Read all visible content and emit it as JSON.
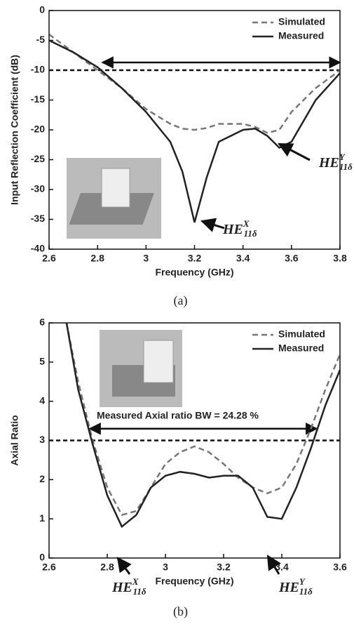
{
  "chart_data": [
    {
      "type": "line",
      "xlabel": "Frequency (GHz)",
      "ylabel": "Input Reflection Coefficient (dB)",
      "caption": "(a)",
      "x": [
        2.6,
        2.7,
        2.8,
        2.9,
        3.0,
        3.1,
        3.15,
        3.2,
        3.25,
        3.3,
        3.4,
        3.45,
        3.5,
        3.55,
        3.6,
        3.7,
        3.8
      ],
      "series": [
        {
          "name": "Simulated",
          "color": "#777777",
          "style": "dashed",
          "values": [
            -4,
            -7,
            -10,
            -13,
            -16.5,
            -19,
            -19.8,
            -20,
            -19.7,
            -19,
            -19,
            -19.5,
            -20.5,
            -20,
            -17,
            -13,
            -10
          ]
        },
        {
          "name": "Measured",
          "color": "#222222",
          "style": "solid",
          "values": [
            -5,
            -7,
            -9.5,
            -13,
            -17,
            -22,
            -27,
            -35.5,
            -28,
            -22,
            -20,
            -19.8,
            -21,
            -23,
            -22,
            -15,
            -10.5
          ]
        }
      ],
      "xlim": [
        2.6,
        3.8
      ],
      "xticks": [
        2.6,
        2.8,
        3.0,
        3.2,
        3.4,
        3.6,
        3.8
      ],
      "ylim": [
        -40,
        0
      ],
      "yticks": [
        -40,
        -35,
        -30,
        -25,
        -20,
        -15,
        -10,
        -5,
        0
      ],
      "legend": "upper right",
      "hline": -10,
      "bandwidth_arrow": {
        "from": 2.82,
        "to": 3.8,
        "y": -8.7
      },
      "annotations": [
        {
          "base": "HE",
          "sup": "X",
          "sub": "11δ"
        },
        {
          "base": "HE",
          "sup": "Y",
          "sub": "11δ"
        }
      ]
    },
    {
      "type": "line",
      "xlabel": "Frequency (GHz)",
      "ylabel": "Axial Ratio",
      "caption": "(b)",
      "x": [
        2.66,
        2.7,
        2.75,
        2.8,
        2.85,
        2.9,
        2.95,
        3.0,
        3.05,
        3.1,
        3.15,
        3.2,
        3.25,
        3.3,
        3.35,
        3.4,
        3.45,
        3.5,
        3.55,
        3.6
      ],
      "series": [
        {
          "name": "Simulated",
          "color": "#777777",
          "style": "dashed",
          "values": [
            6,
            4.5,
            3.0,
            1.8,
            1.1,
            1.2,
            1.8,
            2.4,
            2.7,
            2.85,
            2.7,
            2.4,
            2.05,
            1.8,
            1.65,
            1.8,
            2.4,
            3.3,
            4.3,
            5.2
          ]
        },
        {
          "name": "Measured",
          "color": "#222222",
          "style": "solid",
          "values": [
            6,
            4.3,
            2.9,
            1.6,
            0.8,
            1.1,
            1.8,
            2.1,
            2.2,
            2.15,
            2.05,
            2.1,
            2.1,
            1.8,
            1.05,
            1.0,
            1.8,
            2.8,
            3.9,
            4.8
          ]
        }
      ],
      "xlim": [
        2.6,
        3.6
      ],
      "xticks": [
        2.6,
        2.8,
        3.0,
        3.2,
        3.4,
        3.6
      ],
      "ylim": [
        0,
        6
      ],
      "yticks": [
        0,
        1,
        2,
        3,
        4,
        5,
        6
      ],
      "legend": "upper right",
      "hline": 3,
      "note": "Measured Axial ratio BW = 24.28 %",
      "bandwidth_arrow": {
        "from": 2.74,
        "to": 3.52,
        "y": 3.3
      },
      "annotations": [
        {
          "base": "HE",
          "sup": "X",
          "sub": "11δ"
        },
        {
          "base": "HE",
          "sup": "Y",
          "sub": "11δ"
        }
      ]
    }
  ]
}
